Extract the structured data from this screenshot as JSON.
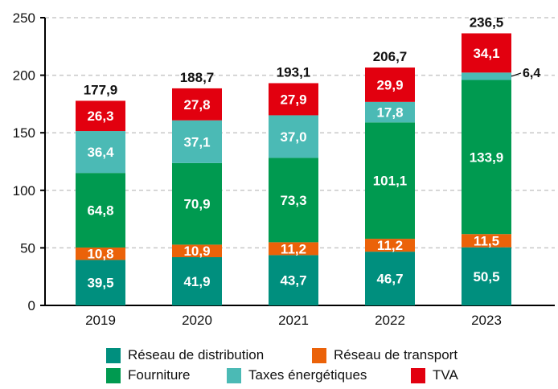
{
  "chart_data": {
    "type": "bar",
    "stacked": true,
    "categories": [
      "2019",
      "2020",
      "2021",
      "2022",
      "2023"
    ],
    "series": [
      {
        "name": "Réseau de distribution",
        "color": "#008f7e",
        "values": [
          39.5,
          41.9,
          43.7,
          46.7,
          50.5
        ],
        "labels": [
          "39,5",
          "41,9",
          "43,7",
          "46,7",
          "50,5"
        ]
      },
      {
        "name": "Réseau de transport",
        "color": "#eb6209",
        "values": [
          10.8,
          10.9,
          11.2,
          11.2,
          11.5
        ],
        "labels": [
          "10,8",
          "10,9",
          "11,2",
          "11,2",
          "11,5"
        ]
      },
      {
        "name": "Fourniture",
        "color": "#009a50",
        "values": [
          64.8,
          70.9,
          73.3,
          101.1,
          133.9
        ],
        "labels": [
          "64,8",
          "70,9",
          "73,3",
          "101,1",
          "133,9"
        ]
      },
      {
        "name": "Taxes énergétiques",
        "color": "#4bbab5",
        "values": [
          36.4,
          37.1,
          37.0,
          17.8,
          6.4
        ],
        "labels": [
          "36,4",
          "37,1",
          "37,0",
          "17,8",
          "6,4"
        ]
      },
      {
        "name": "TVA",
        "color": "#e2000f",
        "values": [
          26.3,
          27.8,
          27.9,
          29.9,
          34.1
        ],
        "labels": [
          "26,3",
          "27,8",
          "27,9",
          "29,9",
          "34,1"
        ]
      }
    ],
    "totals": [
      "177,9",
      "188,7",
      "193,1",
      "206,7",
      "236,5"
    ],
    "ylim": [
      0,
      250
    ],
    "yticks": [
      "0",
      "50",
      "100",
      "150",
      "200",
      "250"
    ],
    "grid": true,
    "legend_position": "bottom"
  }
}
